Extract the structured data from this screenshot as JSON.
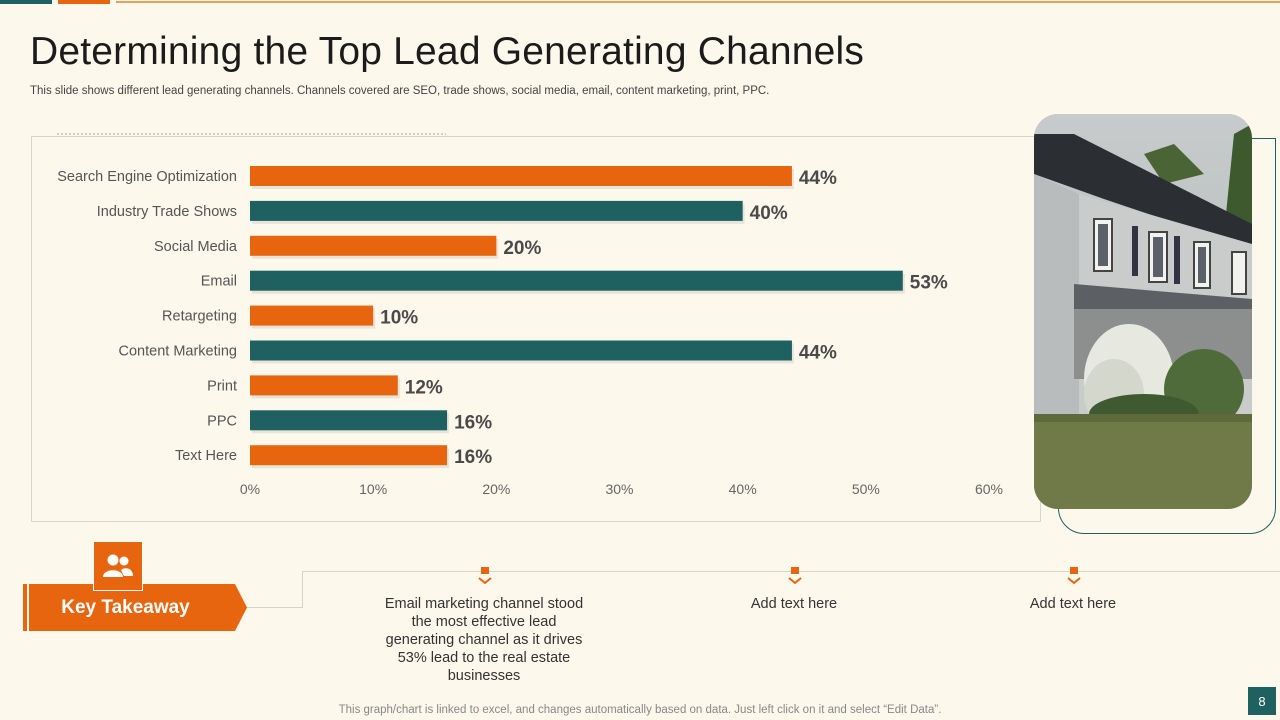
{
  "slide": {
    "title": "Determining the Top Lead Generating Channels",
    "subtitle": "This slide shows different lead generating channels. Channels covered are SEO, trade shows, social media, email, content marketing, print, PPC.",
    "footer_note": "This graph/chart is linked to excel,  and changes automatically based on data. Just left click on it and select “Edit Data”.",
    "page_number": "8"
  },
  "colors": {
    "orange": "#e8650f",
    "teal": "#1f6060",
    "background": "#fcf8ec"
  },
  "chart_data": {
    "type": "bar",
    "orientation": "horizontal",
    "title": "",
    "xlabel": "",
    "ylabel": "",
    "xlim": [
      0,
      60
    ],
    "x_ticks": [
      "0%",
      "10%",
      "20%",
      "30%",
      "40%",
      "50%",
      "60%"
    ],
    "categories": [
      "Search Engine Optimization",
      "Industry Trade Shows",
      "Social Media",
      "Email",
      "Retargeting",
      "Content Marketing",
      "Print",
      "PPC",
      "Text Here"
    ],
    "values": [
      44,
      40,
      20,
      53,
      10,
      44,
      12,
      16,
      16
    ],
    "value_labels": [
      "44%",
      "40%",
      "20%",
      "53%",
      "10%",
      "44%",
      "12%",
      "16%",
      "16%"
    ],
    "bar_colors": [
      "#e8650f",
      "#1f6060",
      "#e8650f",
      "#1f6060",
      "#e8650f",
      "#1f6060",
      "#e8650f",
      "#1f6060",
      "#e8650f"
    ],
    "grid": false,
    "legend": "none"
  },
  "key_takeaway": {
    "label": "Key Takeaway",
    "icon": "users-icon",
    "items": [
      "Email marketing channel stood the most effective lead generating channel as it drives 53% lead to the real estate businesses",
      "Add text here",
      "Add text here"
    ]
  },
  "image": {
    "icon": "house-photo"
  }
}
